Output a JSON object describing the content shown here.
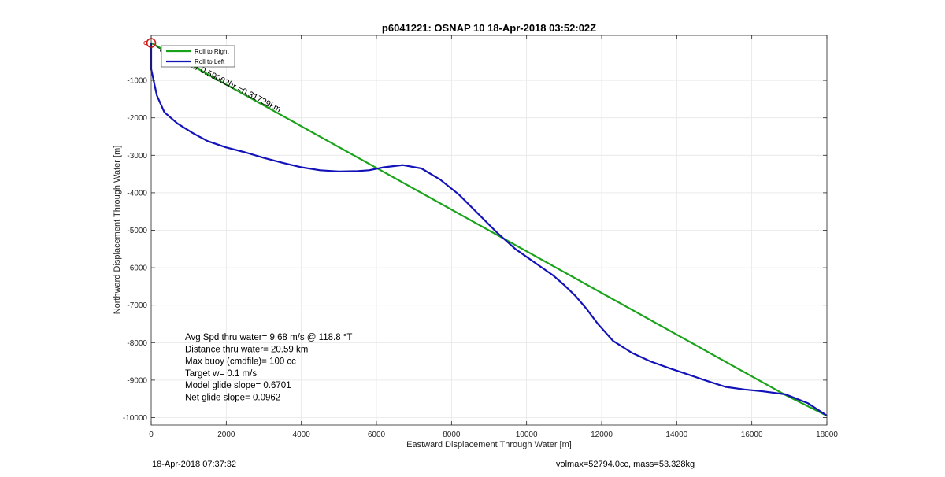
{
  "chart_data": {
    "type": "line",
    "title": "p6041221: OSNAP 10 18-Apr-2018 03:52:02Z",
    "xlabel": "Eastward Displacement Through Water [m]",
    "ylabel": "Northward Displacement Through Water [m]",
    "xlim": [
      0,
      18000
    ],
    "ylim": [
      -10200,
      200
    ],
    "xticks": [
      0,
      2000,
      4000,
      6000,
      8000,
      10000,
      12000,
      14000,
      16000,
      18000
    ],
    "yticks": [
      -10000,
      -9000,
      -8000,
      -7000,
      -6000,
      -5000,
      -4000,
      -3000,
      -2000,
      -1000
    ],
    "grid": true,
    "legend_position": "top-left",
    "series": [
      {
        "name": "Roll to Right",
        "color": "#1aa31a",
        "x": [
          0,
          16900,
          18000
        ],
        "y": [
          0,
          -9400,
          -9950
        ]
      },
      {
        "name": "Roll to Left",
        "color": "#1212b8",
        "x": [
          0,
          0,
          150,
          350,
          700,
          1100,
          1500,
          2000,
          2500,
          3000,
          3500,
          4000,
          4500,
          5000,
          5500,
          5800,
          6200,
          6700,
          7200,
          7700,
          8200,
          8700,
          9200,
          9700,
          10200,
          10700,
          11000,
          11300,
          11600,
          11900,
          12300,
          12800,
          13300,
          13800,
          14300,
          14800,
          15300,
          15800,
          16300,
          16900,
          17500,
          18000
        ],
        "y": [
          0,
          -700,
          -1400,
          -1850,
          -2150,
          -2400,
          -2620,
          -2790,
          -2920,
          -3070,
          -3200,
          -3320,
          -3400,
          -3430,
          -3420,
          -3400,
          -3320,
          -3260,
          -3350,
          -3650,
          -4050,
          -4550,
          -5050,
          -5500,
          -5850,
          -6200,
          -6460,
          -6750,
          -7100,
          -7500,
          -7950,
          -8270,
          -8500,
          -8680,
          -8850,
          -9020,
          -9180,
          -9250,
          -9300,
          -9380,
          -9620,
          -9950
        ]
      }
    ],
    "annotation_text": "~0.15m/s for 0.59062hr =0.31729km",
    "annotation_start": [
      0,
      0
    ],
    "stats": [
      "Avg Spd thru water=  9.68 m/s @ 118.8 °T",
      "Distance thru water= 20.59 km",
      "Max buoy (cmdfile)= 100 cc",
      "Target w= 0.1 m/s",
      "Model glide slope= 0.6701",
      "Net glide slope= 0.0962"
    ],
    "marker_color": "#d11414",
    "axes_color": "#262626",
    "grid_color": "#e6e6e6"
  },
  "footer": {
    "timestamp": "18-Apr-2018 07:37:32",
    "volmax_mass": "volmax=52794.0cc, mass=53.328kg"
  }
}
